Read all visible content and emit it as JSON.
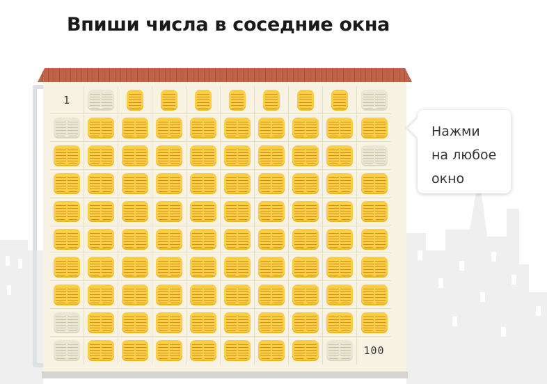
{
  "title": "Впиши числа в соседние окна",
  "hint": {
    "line1": "Нажми",
    "line2": "на любое",
    "line3": "окно"
  },
  "grid": {
    "columns": 10,
    "rows": 10,
    "filled": {
      "0": "1",
      "99": "100"
    },
    "single_pane_windows": [
      2,
      3,
      4,
      5,
      6,
      7,
      8
    ],
    "pale_windows": [
      1,
      9,
      10,
      29,
      80,
      90,
      98
    ]
  },
  "colors": {
    "window_active": "#ffcd45",
    "window_inactive": "#ebe6d3",
    "facade": "#f7f2e2",
    "roof": "#c0624a",
    "silhouette": "#efefef"
  },
  "icons": {
    "window": "double-pane-window-icon",
    "single": "single-pane-window-icon"
  }
}
